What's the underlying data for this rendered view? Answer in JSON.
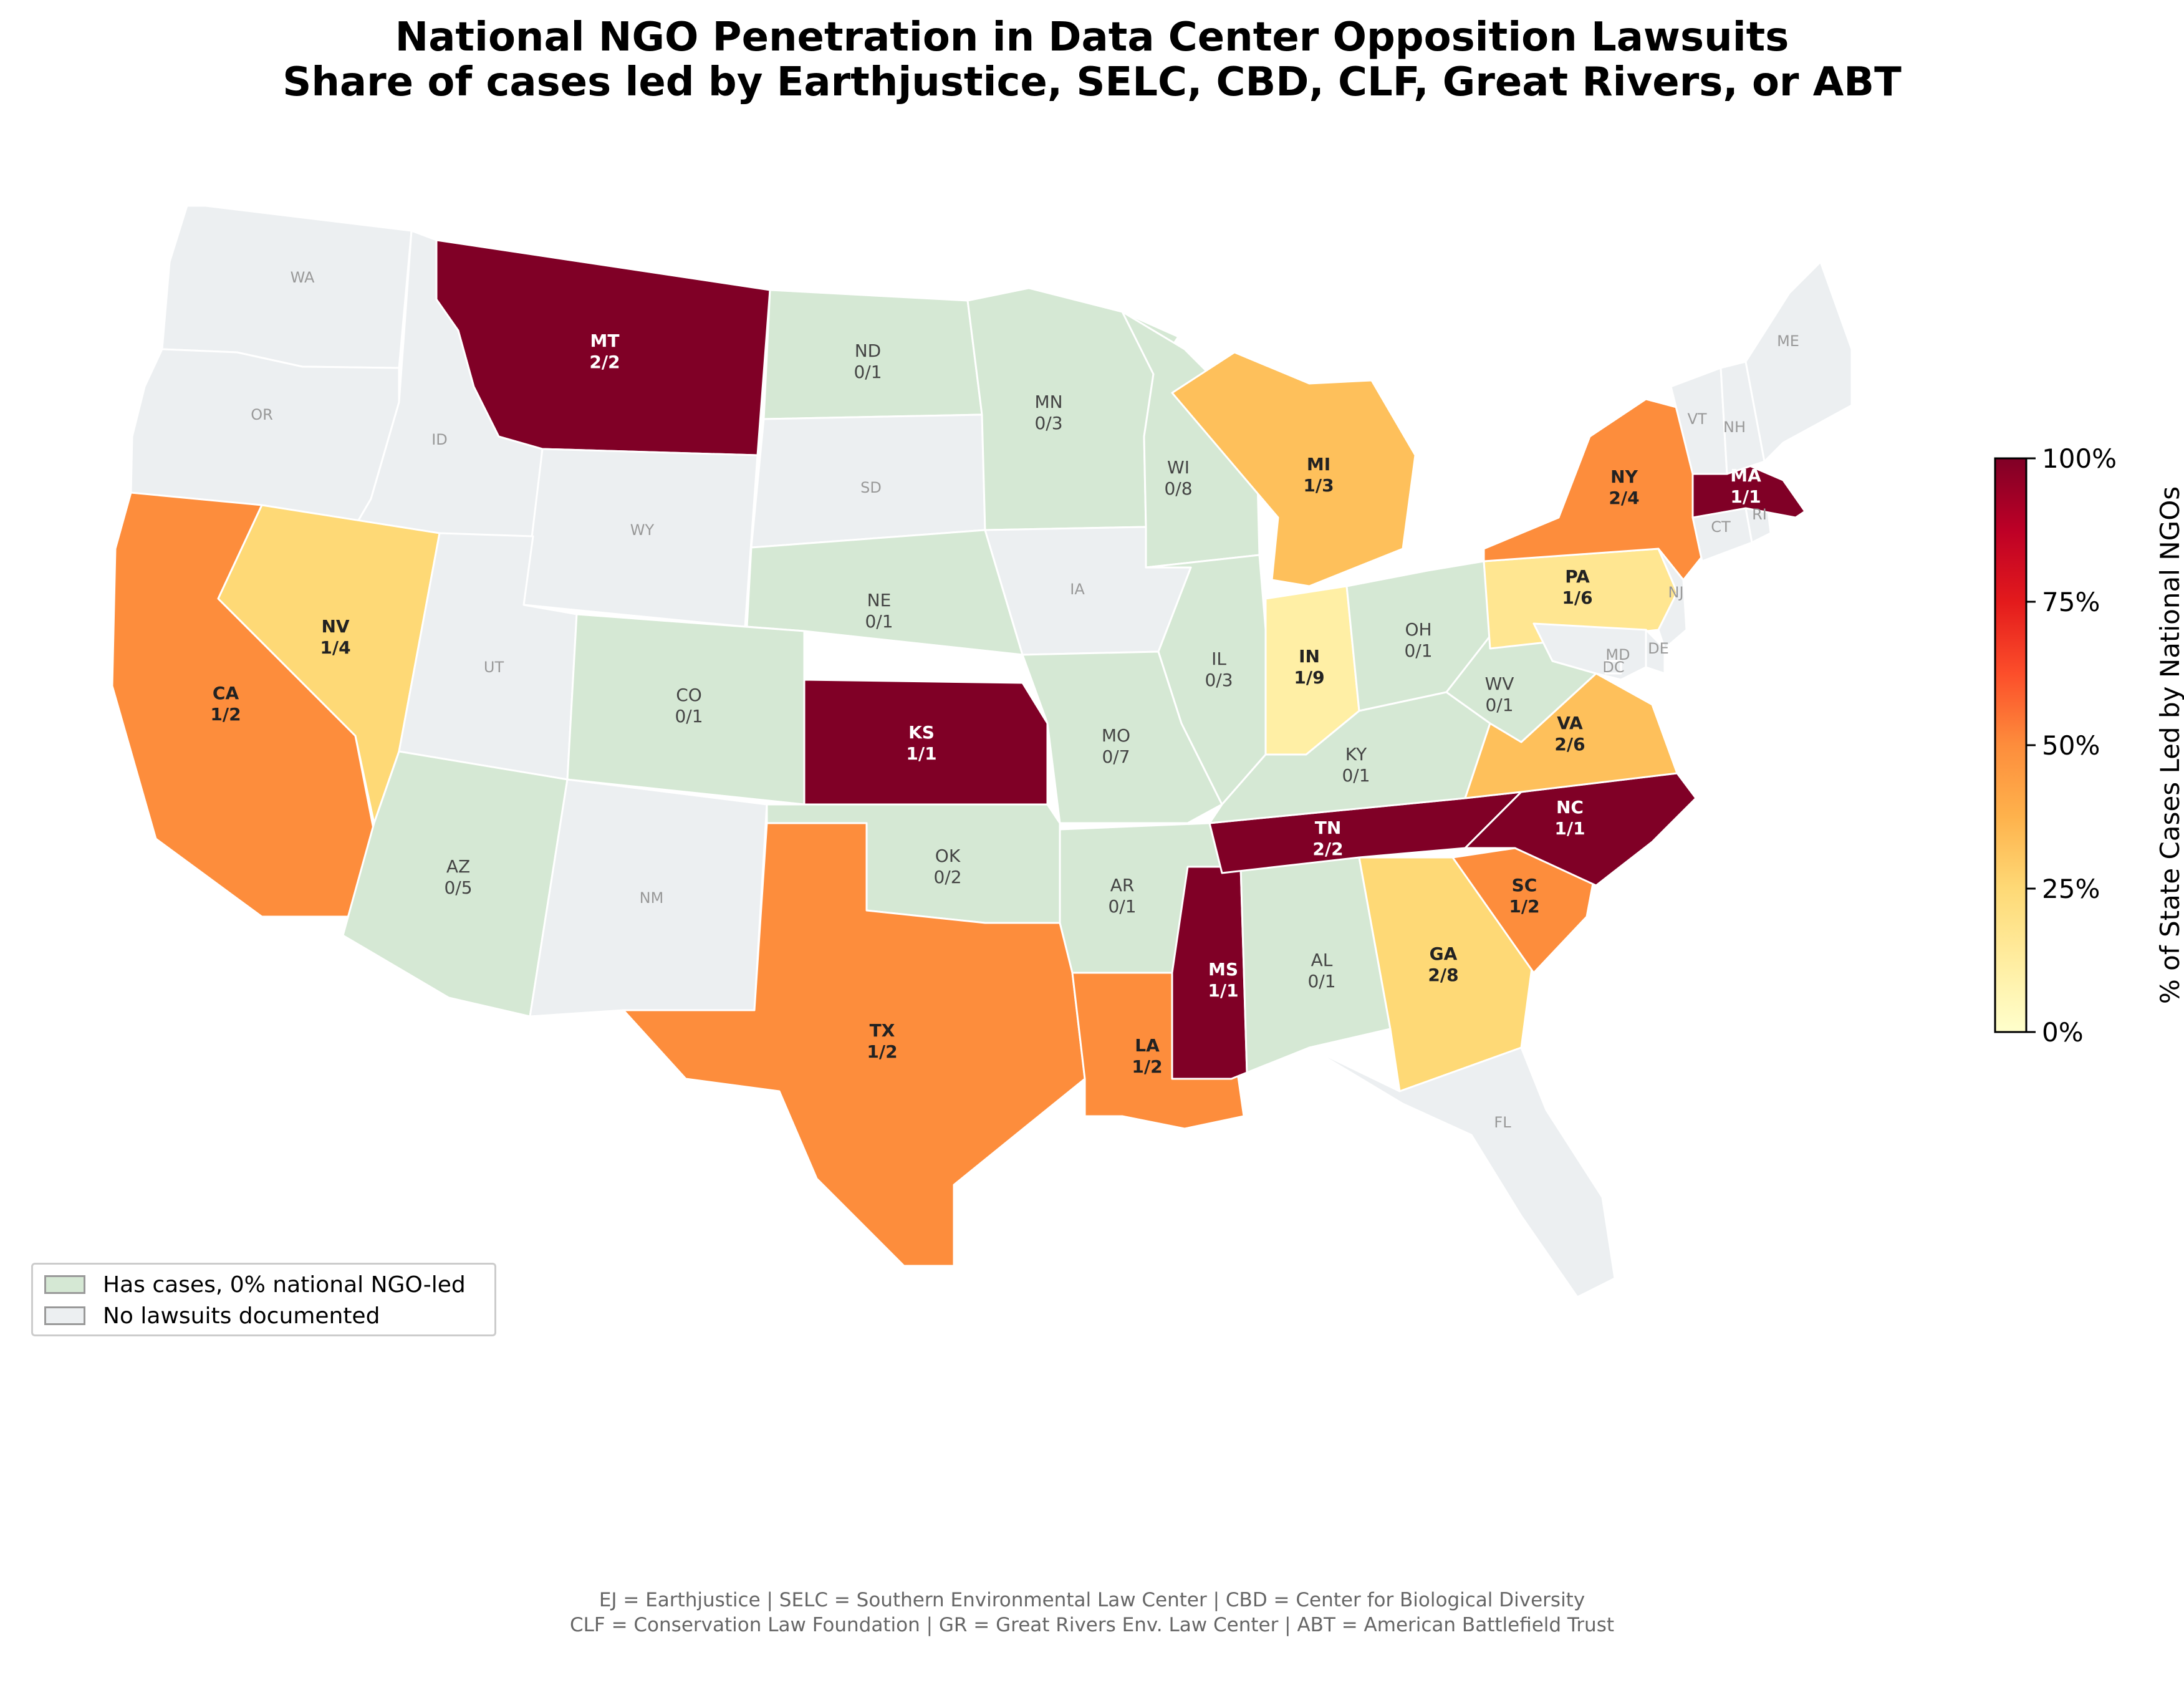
{
  "title_line1": "National NGO Penetration in Data Center Opposition Lawsuits",
  "title_line2": "Share of cases led by Earthjustice, SELC, CBD, CLF, Great Rivers, or ABT",
  "colorbar": {
    "label": "% of State Cases Led by National NGOs",
    "ticks": [
      "0%",
      "25%",
      "50%",
      "75%",
      "100%"
    ],
    "stops": [
      "#ffffcc",
      "#ffeda0",
      "#fed976",
      "#feb24c",
      "#fd8d3c",
      "#fc4e2a",
      "#e31a1c",
      "#bd0026",
      "#800026"
    ]
  },
  "legend": {
    "items": [
      {
        "label": "Has cases, 0% national NGO-led",
        "color": "#d5e8d4"
      },
      {
        "label": "No lawsuits documented",
        "color": "#eceff1"
      }
    ]
  },
  "footer": {
    "line1": "EJ = Earthjustice  |  SELC = Southern Environmental Law Center  |  CBD = Center for Biological Diversity",
    "line2": "CLF = Conservation Law Foundation  |  GR = Great Rivers Env. Law Center  |  ABT = American Battlefield Trust"
  },
  "map_colors": {
    "no_cases": "#eceff1",
    "zero_pct": "#d5e8d4",
    "border": "#ffffff",
    "label_no_cases": "#999999",
    "label_zero": "#444444",
    "label_dark_bg": "#ffffff",
    "label_light_bg": "#222222"
  },
  "states": [
    {
      "code": "WA",
      "ratio": null
    },
    {
      "code": "OR",
      "ratio": null
    },
    {
      "code": "ID",
      "ratio": null
    },
    {
      "code": "MT",
      "ratio": "2/2",
      "pct": 100
    },
    {
      "code": "WY",
      "ratio": null
    },
    {
      "code": "ND",
      "ratio": "0/1",
      "pct": 0
    },
    {
      "code": "SD",
      "ratio": null
    },
    {
      "code": "NE",
      "ratio": "0/1",
      "pct": 0
    },
    {
      "code": "MN",
      "ratio": "0/3",
      "pct": 0
    },
    {
      "code": "IA",
      "ratio": null
    },
    {
      "code": "WI",
      "ratio": "0/8",
      "pct": 0
    },
    {
      "code": "MI",
      "ratio": "1/3",
      "pct": 33
    },
    {
      "code": "CA",
      "ratio": "1/2",
      "pct": 50
    },
    {
      "code": "NV",
      "ratio": "1/4",
      "pct": 25
    },
    {
      "code": "UT",
      "ratio": null
    },
    {
      "code": "CO",
      "ratio": "0/1",
      "pct": 0
    },
    {
      "code": "KS",
      "ratio": "1/1",
      "pct": 100
    },
    {
      "code": "MO",
      "ratio": "0/7",
      "pct": 0
    },
    {
      "code": "IL",
      "ratio": "0/3",
      "pct": 0
    },
    {
      "code": "IN",
      "ratio": "1/9",
      "pct": 11
    },
    {
      "code": "OH",
      "ratio": "0/1",
      "pct": 0
    },
    {
      "code": "AZ",
      "ratio": "0/5",
      "pct": 0
    },
    {
      "code": "NM",
      "ratio": null
    },
    {
      "code": "OK",
      "ratio": "0/2",
      "pct": 0
    },
    {
      "code": "TX",
      "ratio": "1/2",
      "pct": 50
    },
    {
      "code": "AR",
      "ratio": "0/1",
      "pct": 0
    },
    {
      "code": "LA",
      "ratio": "1/2",
      "pct": 50
    },
    {
      "code": "MS",
      "ratio": "1/1",
      "pct": 100
    },
    {
      "code": "AL",
      "ratio": "0/1",
      "pct": 0
    },
    {
      "code": "TN",
      "ratio": "2/2",
      "pct": 100
    },
    {
      "code": "KY",
      "ratio": "0/1",
      "pct": 0
    },
    {
      "code": "GA",
      "ratio": "2/8",
      "pct": 25
    },
    {
      "code": "FL",
      "ratio": null
    },
    {
      "code": "SC",
      "ratio": "1/2",
      "pct": 50
    },
    {
      "code": "NC",
      "ratio": "1/1",
      "pct": 100
    },
    {
      "code": "VA",
      "ratio": "2/6",
      "pct": 33
    },
    {
      "code": "WV",
      "ratio": "0/1",
      "pct": 0
    },
    {
      "code": "PA",
      "ratio": "1/6",
      "pct": 17
    },
    {
      "code": "NY",
      "ratio": "2/4",
      "pct": 50
    },
    {
      "code": "NJ",
      "ratio": null
    },
    {
      "code": "DE",
      "ratio": null
    },
    {
      "code": "MD",
      "ratio": null
    },
    {
      "code": "DC",
      "ratio": null
    },
    {
      "code": "CT",
      "ratio": null
    },
    {
      "code": "RI",
      "ratio": null
    },
    {
      "code": "MA",
      "ratio": "1/1",
      "pct": 100
    },
    {
      "code": "VT",
      "ratio": null
    },
    {
      "code": "NH",
      "ratio": null
    },
    {
      "code": "ME",
      "ratio": null
    }
  ]
}
